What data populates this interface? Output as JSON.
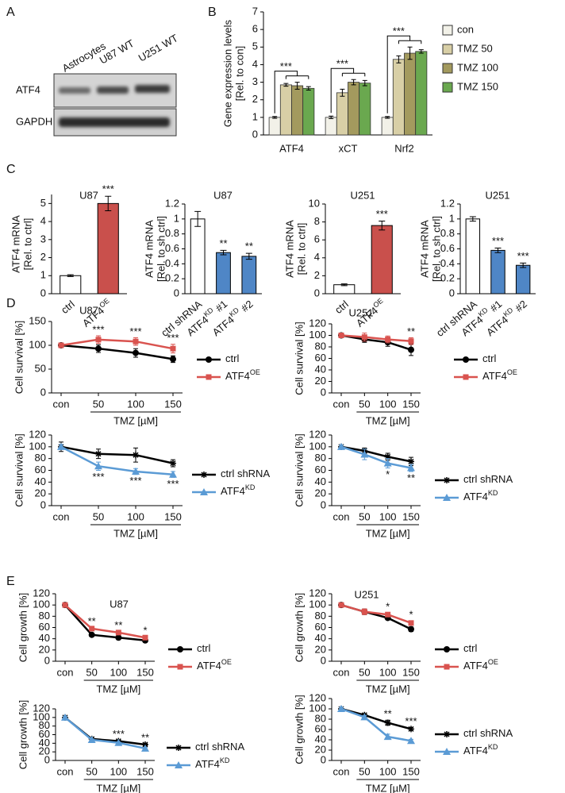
{
  "panel_labels": [
    "A",
    "B",
    "C",
    "D",
    "E"
  ],
  "blot": {
    "lanes": [
      "Astrocytes",
      "U87 WT",
      "U251 WT"
    ],
    "rows": [
      "ATF4",
      "GAPDH"
    ]
  },
  "chart_data": [
    {
      "type": "bar",
      "ylabel": [
        "Gene expression levels",
        "[Rel. to con]"
      ],
      "categories": [
        "ATF4",
        "xCT",
        "Nrf2"
      ],
      "series": [
        {
          "name": "con",
          "color": "#f2f1e8",
          "values": [
            1,
            1,
            1
          ],
          "error": [
            0.05,
            0.07,
            0.05
          ]
        },
        {
          "name": "TMZ 50",
          "color": "#d8cfa6",
          "values": [
            2.85,
            2.4,
            4.3
          ],
          "error": [
            0.08,
            0.2,
            0.2
          ]
        },
        {
          "name": "TMZ 100",
          "color": "#a39a5e",
          "values": [
            2.8,
            3.0,
            4.65
          ],
          "error": [
            0.2,
            0.15,
            0.35
          ]
        },
        {
          "name": "TMZ 150",
          "color": "#6aa84f",
          "values": [
            2.65,
            2.95,
            4.75
          ],
          "error": [
            0.1,
            0.15,
            0.1
          ]
        }
      ],
      "annotations": [
        {
          "index": 0,
          "text": "***"
        },
        {
          "index": 1,
          "text": "***"
        },
        {
          "index": 2,
          "text": "***"
        }
      ],
      "ylim": [
        0,
        7
      ],
      "yticks": [
        0,
        1,
        2,
        3,
        4,
        5,
        6,
        7
      ],
      "legend": "right"
    },
    {
      "type": "bar",
      "title": "U87",
      "ylabel": [
        "ATF4 mRNA",
        "[Rel. to ctrl]"
      ],
      "categories": [
        "ctrl",
        {
          "text": "ATF4",
          "sup": "OE"
        }
      ],
      "values": [
        1,
        5.0
      ],
      "error": [
        0.05,
        0.4
      ],
      "colors": [
        "#ffffff",
        "#c9504c"
      ],
      "annotations": [
        {
          "index": 1,
          "text": "***"
        }
      ],
      "ylim": [
        0,
        5.5
      ],
      "yticks": [
        0,
        1,
        2,
        3,
        4,
        5
      ]
    },
    {
      "type": "bar",
      "title": "U87",
      "ylabel": [
        "ATF4 mRNA",
        "[Rel. to sh ctrl]"
      ],
      "categories": [
        "ctrl shRNA",
        {
          "text": "ATF4",
          "sup": "KD",
          "after": "#1"
        },
        {
          "text": "ATF4",
          "sup": "KD",
          "after": "#2"
        }
      ],
      "values": [
        1,
        0.55,
        0.5
      ],
      "error": [
        0.1,
        0.03,
        0.04
      ],
      "colors": [
        "#ffffff",
        "#4f86c6",
        "#4f86c6"
      ],
      "annotations": [
        {
          "index": 1,
          "text": "**"
        },
        {
          "index": 2,
          "text": "**"
        }
      ],
      "ylim": [
        0,
        1.2
      ],
      "yticks": [
        0,
        0.2,
        0.4,
        0.6,
        0.8,
        1,
        1.2
      ]
    },
    {
      "type": "bar",
      "title": "U251",
      "ylabel": [
        "ATF4 mRNA",
        "[Rel. to ctrl]"
      ],
      "categories": [
        "ctrl",
        {
          "text": "ATF4",
          "sup": "OE"
        }
      ],
      "values": [
        1,
        7.6
      ],
      "error": [
        0.1,
        0.5
      ],
      "colors": [
        "#ffffff",
        "#c9504c"
      ],
      "annotations": [
        {
          "index": 1,
          "text": "***"
        }
      ],
      "ylim": [
        0,
        10
      ],
      "yticks": [
        0,
        2,
        4,
        6,
        8,
        10
      ]
    },
    {
      "type": "bar",
      "title": "U251",
      "ylabel": [
        "ATF4 mRNA",
        "[Rel. to sh ctrl]"
      ],
      "categories": [
        "ctrl shRNA",
        {
          "text": "ATF4",
          "sup": "KD",
          "after": "#1"
        },
        {
          "text": "ATF4",
          "sup": "KD",
          "after": "#2"
        }
      ],
      "values": [
        1,
        0.58,
        0.38
      ],
      "error": [
        0.03,
        0.03,
        0.03
      ],
      "colors": [
        "#ffffff",
        "#4f86c6",
        "#4f86c6"
      ],
      "annotations": [
        {
          "index": 1,
          "text": "***"
        },
        {
          "index": 2,
          "text": "***"
        }
      ],
      "ylim": [
        0,
        1.2
      ],
      "yticks": [
        0,
        0.2,
        0.4,
        0.6,
        0.8,
        1,
        1.2
      ]
    },
    {
      "type": "line",
      "title": "U87",
      "ylabel": "Cell survival [%]",
      "xlabel": "TMZ [µM]",
      "categories": [
        "con",
        "50",
        "100",
        "150"
      ],
      "series": [
        {
          "name": "ctrl",
          "color": "#000000",
          "marker": "circle",
          "values": [
            100,
            93,
            84,
            71
          ],
          "error": [
            3,
            8,
            9,
            7
          ]
        },
        {
          "name": "ATF4",
          "sup": "OE",
          "color": "#d9534f",
          "marker": "square",
          "values": [
            100,
            112,
            108,
            93
          ],
          "error": [
            3,
            8,
            8,
            9
          ]
        }
      ],
      "annotations": [
        {
          "index": 1,
          "text": "***",
          "position": "above"
        },
        {
          "index": 2,
          "text": "***",
          "position": "above"
        },
        {
          "index": 3,
          "text": "***",
          "position": "above"
        }
      ],
      "ylim": [
        0,
        150
      ],
      "yticks": [
        0,
        50,
        100,
        150
      ]
    },
    {
      "type": "line",
      "title": "U251",
      "ylabel": "Cell survival [%]",
      "xlabel": "TMZ [µM]",
      "categories": [
        "con",
        "50",
        "100",
        "150"
      ],
      "series": [
        {
          "name": "ctrl",
          "color": "#000000",
          "marker": "circle",
          "values": [
            100,
            93,
            88,
            75
          ],
          "error": [
            3,
            5,
            7,
            10
          ]
        },
        {
          "name": "ATF4",
          "sup": "OE",
          "color": "#d9534f",
          "marker": "square",
          "values": [
            100,
            97,
            93,
            90
          ],
          "error": [
            3,
            7,
            6,
            6
          ]
        }
      ],
      "annotations": [
        {
          "index": 3,
          "text": "**",
          "position": "above"
        }
      ],
      "ylim": [
        0,
        120
      ],
      "yticks": [
        0,
        20,
        40,
        60,
        80,
        100,
        120
      ]
    },
    {
      "type": "line",
      "ylabel": "Cell survival [%]",
      "xlabel": "TMZ [µM]",
      "categories": [
        "con",
        "50",
        "100",
        "150"
      ],
      "series": [
        {
          "name": "ctrl shRNA",
          "color": "#000000",
          "marker": "star",
          "values": [
            100,
            88,
            86,
            72
          ],
          "error": [
            8,
            8,
            12,
            6
          ]
        },
        {
          "name": "ATF4",
          "sup": "KD",
          "color": "#5b9bd5",
          "marker": "triangle",
          "values": [
            100,
            67,
            58,
            53
          ],
          "error": [
            4,
            7,
            5,
            5
          ]
        }
      ],
      "annotations": [
        {
          "index": 1,
          "text": "***",
          "position": "below"
        },
        {
          "index": 2,
          "text": "***",
          "position": "below"
        },
        {
          "index": 3,
          "text": "***",
          "position": "below"
        }
      ],
      "ylim": [
        0,
        120
      ],
      "yticks": [
        0,
        20,
        40,
        60,
        80,
        100,
        120
      ]
    },
    {
      "type": "line",
      "ylabel": "Cell survival [%]",
      "xlabel": "TMZ [µM]",
      "categories": [
        "con",
        "50",
        "100",
        "150"
      ],
      "series": [
        {
          "name": "ctrl shRNA",
          "color": "#000000",
          "marker": "star",
          "values": [
            100,
            93,
            83,
            75
          ],
          "error": [
            3,
            5,
            6,
            7
          ]
        },
        {
          "name": "ATF4",
          "sup": "KD",
          "color": "#5b9bd5",
          "marker": "triangle",
          "values": [
            100,
            87,
            72,
            64
          ],
          "error": [
            3,
            9,
            8,
            6
          ]
        }
      ],
      "annotations": [
        {
          "index": 2,
          "text": "*",
          "position": "below"
        },
        {
          "index": 3,
          "text": "**",
          "position": "below"
        }
      ],
      "ylim": [
        0,
        120
      ],
      "yticks": [
        0,
        20,
        40,
        60,
        80,
        100,
        120
      ]
    },
    {
      "type": "line",
      "title": "U87",
      "ylabel": "Cell growth [%]",
      "xlabel": "TMZ [µM]",
      "categories": [
        "con",
        "50",
        "100",
        "150"
      ],
      "series": [
        {
          "name": "ctrl",
          "color": "#000000",
          "marker": "circle",
          "values": [
            100,
            47,
            42,
            37
          ],
          "error": [
            2,
            2,
            2,
            2
          ]
        },
        {
          "name": "ATF4",
          "sup": "OE",
          "color": "#d9534f",
          "marker": "square",
          "values": [
            100,
            58,
            51,
            42
          ],
          "error": [
            2,
            2,
            2,
            2
          ]
        }
      ],
      "annotations": [
        {
          "index": 1,
          "text": "**",
          "position": "above"
        },
        {
          "index": 2,
          "text": "**",
          "position": "above"
        },
        {
          "index": 3,
          "text": "*",
          "position": "above"
        }
      ],
      "ylim": [
        0,
        120
      ],
      "yticks": [
        0,
        20,
        40,
        60,
        80,
        100,
        120
      ]
    },
    {
      "type": "line",
      "title": "U251",
      "ylabel": "Cell growth [%]",
      "xlabel": "TMZ [µM]",
      "categories": [
        "con",
        "50",
        "100",
        "150"
      ],
      "series": [
        {
          "name": "ctrl",
          "color": "#000000",
          "marker": "circle",
          "values": [
            100,
            88,
            77,
            57
          ],
          "error": [
            3,
            5,
            3,
            4
          ]
        },
        {
          "name": "ATF4",
          "sup": "OE",
          "color": "#d9534f",
          "marker": "square",
          "values": [
            100,
            88,
            83,
            68
          ],
          "error": [
            3,
            5,
            3,
            4
          ]
        }
      ],
      "annotations": [
        {
          "index": 2,
          "text": "*",
          "position": "above"
        },
        {
          "index": 3,
          "text": "*",
          "position": "above"
        }
      ],
      "ylim": [
        0,
        120
      ],
      "yticks": [
        0,
        20,
        40,
        60,
        80,
        100,
        120
      ]
    },
    {
      "type": "line",
      "ylabel": "Cell growth [%]",
      "xlabel": "TMZ [µM]",
      "categories": [
        "con",
        "50",
        "100",
        "150"
      ],
      "series": [
        {
          "name": "ctrl shRNA",
          "color": "#000000",
          "marker": "star",
          "values": [
            100,
            50,
            45,
            37
          ],
          "error": [
            3,
            2,
            2,
            2
          ]
        },
        {
          "name": "ATF4",
          "sup": "KD",
          "color": "#5b9bd5",
          "marker": "triangle",
          "values": [
            100,
            48,
            41,
            28
          ],
          "error": [
            3,
            2,
            2,
            2
          ]
        }
      ],
      "annotations": [
        {
          "index": 2,
          "text": "***",
          "position": "above"
        },
        {
          "index": 3,
          "text": "**",
          "position": "above"
        }
      ],
      "ylim": [
        0,
        120
      ],
      "yticks": [
        0,
        20,
        40,
        60,
        80,
        100,
        120
      ]
    },
    {
      "type": "line",
      "ylabel": "Cell growth [%]",
      "xlabel": "TMZ [µM]",
      "categories": [
        "con",
        "50",
        "100",
        "150"
      ],
      "series": [
        {
          "name": "ctrl shRNA",
          "color": "#000000",
          "marker": "star",
          "values": [
            100,
            88,
            73,
            61
          ],
          "error": [
            3,
            3,
            5,
            3
          ]
        },
        {
          "name": "ATF4",
          "sup": "KD",
          "color": "#5b9bd5",
          "marker": "triangle",
          "values": [
            100,
            84,
            46,
            38
          ],
          "error": [
            3,
            3,
            5,
            3
          ]
        }
      ],
      "annotations": [
        {
          "index": 2,
          "text": "**",
          "position": "above"
        },
        {
          "index": 3,
          "text": "***",
          "position": "above"
        }
      ],
      "ylim": [
        0,
        120
      ],
      "yticks": [
        0,
        20,
        40,
        60,
        80,
        100,
        120
      ]
    }
  ]
}
